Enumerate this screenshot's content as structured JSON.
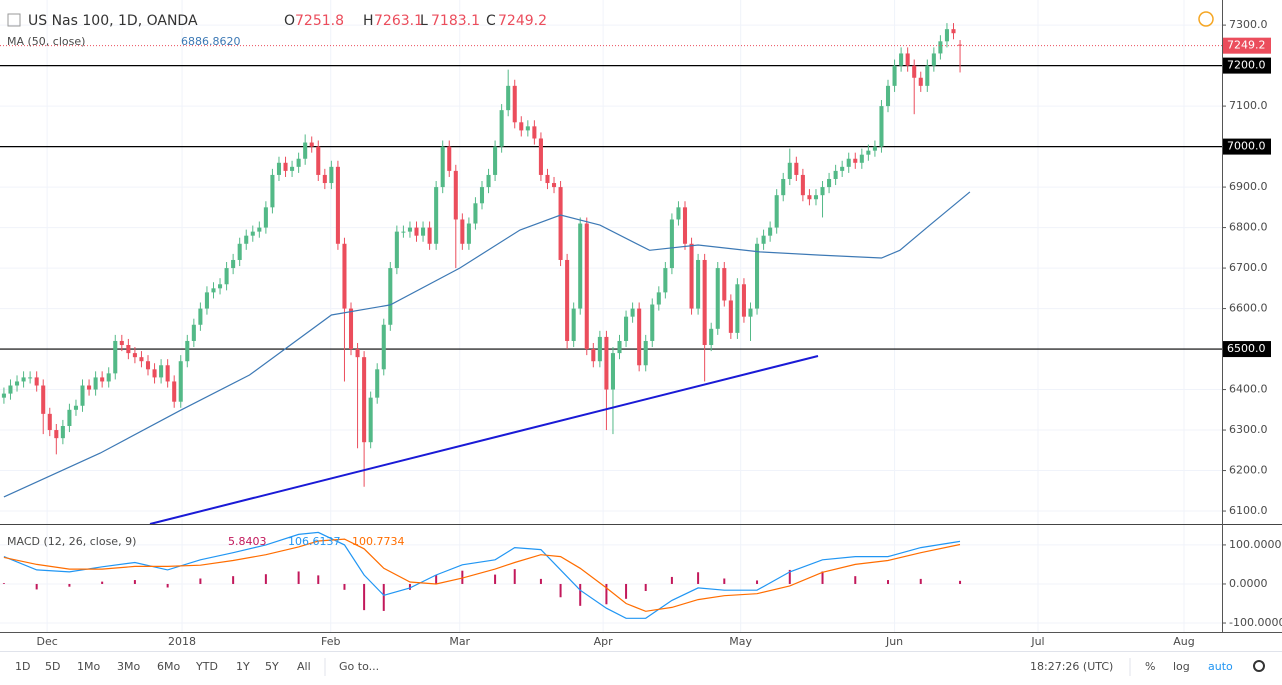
{
  "chart_data": {
    "type": "candlestick",
    "title": "US Nas 100, 1D, OANDA",
    "ohlc_labels": [
      "O",
      "H",
      "L",
      "C"
    ],
    "up_color": "#53b987",
    "down_color": "#eb4d5c",
    "xlim": [
      -0.6,
      186
    ],
    "xticks": [
      {
        "value": 6.6,
        "label": "Dec"
      },
      {
        "value": 27.2,
        "label": "2018"
      },
      {
        "value": 49.9,
        "label": "Feb"
      },
      {
        "value": 69.6,
        "label": "Mar"
      },
      {
        "value": 91.5,
        "label": "Apr"
      },
      {
        "value": 112.5,
        "label": "May"
      },
      {
        "value": 136,
        "label": "Jun"
      },
      {
        "value": 157.9,
        "label": "Jul"
      },
      {
        "value": 180.2,
        "label": "Aug"
      }
    ],
    "ylim": [
      6068,
      7362
    ],
    "yticks": [
      {
        "value": 6100,
        "label": "6100.0"
      },
      {
        "value": 6200,
        "label": "6200.0"
      },
      {
        "value": 6300,
        "label": "6300.0"
      },
      {
        "value": 6400,
        "label": "6400.0"
      },
      {
        "value": 6500,
        "label": "6500.0"
      },
      {
        "value": 6600,
        "label": "6600.0"
      },
      {
        "value": 6700,
        "label": "6700.0"
      },
      {
        "value": 6800,
        "label": "6800.0"
      },
      {
        "value": 6900,
        "label": "6900.0"
      },
      {
        "value": 7000,
        "label": "7000.0"
      },
      {
        "value": 7100,
        "label": "7100.0"
      },
      {
        "value": 7200,
        "label": "7200.0"
      },
      {
        "value": 7300,
        "label": "7300.0"
      }
    ],
    "grid": true,
    "levels": [
      7200,
      7000,
      6500
    ],
    "candles": [
      [
        6380,
        6405,
        6365,
        6390
      ],
      [
        6390,
        6425,
        6375,
        6410
      ],
      [
        6410,
        6435,
        6395,
        6420
      ],
      [
        6420,
        6445,
        6405,
        6430
      ],
      [
        6430,
        6445,
        6415,
        6430
      ],
      [
        6430,
        6445,
        6395,
        6410
      ],
      [
        6410,
        6425,
        6290,
        6340
      ],
      [
        6340,
        6355,
        6285,
        6300
      ],
      [
        6300,
        6315,
        6240,
        6280
      ],
      [
        6280,
        6325,
        6265,
        6310
      ],
      [
        6310,
        6365,
        6295,
        6350
      ],
      [
        6350,
        6375,
        6335,
        6360
      ],
      [
        6360,
        6425,
        6345,
        6410
      ],
      [
        6410,
        6425,
        6385,
        6400
      ],
      [
        6400,
        6445,
        6385,
        6430
      ],
      [
        6430,
        6445,
        6405,
        6420
      ],
      [
        6420,
        6455,
        6405,
        6440
      ],
      [
        6440,
        6535,
        6425,
        6520
      ],
      [
        6520,
        6535,
        6495,
        6510
      ],
      [
        6510,
        6525,
        6475,
        6490
      ],
      [
        6490,
        6505,
        6465,
        6480
      ],
      [
        6480,
        6495,
        6455,
        6470
      ],
      [
        6470,
        6485,
        6435,
        6450
      ],
      [
        6450,
        6465,
        6415,
        6430
      ],
      [
        6430,
        6475,
        6415,
        6460
      ],
      [
        6460,
        6475,
        6405,
        6420
      ],
      [
        6420,
        6435,
        6355,
        6370
      ],
      [
        6370,
        6485,
        6355,
        6470
      ],
      [
        6470,
        6535,
        6455,
        6520
      ],
      [
        6520,
        6575,
        6505,
        6560
      ],
      [
        6560,
        6615,
        6545,
        6600
      ],
      [
        6600,
        6655,
        6585,
        6640
      ],
      [
        6640,
        6665,
        6625,
        6650
      ],
      [
        6650,
        6675,
        6635,
        6660
      ],
      [
        6660,
        6715,
        6645,
        6700
      ],
      [
        6700,
        6735,
        6685,
        6720
      ],
      [
        6720,
        6775,
        6705,
        6760
      ],
      [
        6760,
        6795,
        6745,
        6780
      ],
      [
        6780,
        6805,
        6765,
        6790
      ],
      [
        6790,
        6815,
        6775,
        6800
      ],
      [
        6800,
        6865,
        6785,
        6850
      ],
      [
        6850,
        6945,
        6835,
        6930
      ],
      [
        6930,
        6975,
        6915,
        6960
      ],
      [
        6960,
        6975,
        6925,
        6940
      ],
      [
        6940,
        6965,
        6925,
        6950
      ],
      [
        6950,
        6985,
        6935,
        6970
      ],
      [
        6970,
        7030,
        6955,
        7010
      ],
      [
        7010,
        7025,
        6985,
        7000
      ],
      [
        7000,
        7015,
        6915,
        6930
      ],
      [
        6930,
        6945,
        6895,
        6910
      ],
      [
        6910,
        6965,
        6895,
        6950
      ],
      [
        6950,
        6965,
        6745,
        6760
      ],
      [
        6760,
        6775,
        6420,
        6600
      ],
      [
        6600,
        6615,
        6485,
        6500
      ],
      [
        6500,
        6515,
        6255,
        6480
      ],
      [
        6480,
        6495,
        6160,
        6270
      ],
      [
        6270,
        6395,
        6255,
        6380
      ],
      [
        6380,
        6465,
        6365,
        6450
      ],
      [
        6450,
        6575,
        6435,
        6560
      ],
      [
        6560,
        6715,
        6545,
        6700
      ],
      [
        6700,
        6805,
        6685,
        6790
      ],
      [
        6790,
        6805,
        6775,
        6790
      ],
      [
        6790,
        6815,
        6775,
        6800
      ],
      [
        6800,
        6815,
        6765,
        6780
      ],
      [
        6780,
        6815,
        6765,
        6800
      ],
      [
        6800,
        6815,
        6745,
        6760
      ],
      [
        6760,
        6915,
        6745,
        6900
      ],
      [
        6900,
        7015,
        6885,
        7000
      ],
      [
        7000,
        7015,
        6925,
        6940
      ],
      [
        6940,
        6955,
        6700,
        6820
      ],
      [
        6820,
        6835,
        6745,
        6760
      ],
      [
        6760,
        6825,
        6745,
        6810
      ],
      [
        6810,
        6875,
        6795,
        6860
      ],
      [
        6860,
        6915,
        6845,
        6900
      ],
      [
        6900,
        6945,
        6885,
        6930
      ],
      [
        6930,
        7015,
        6915,
        7000
      ],
      [
        7000,
        7105,
        6985,
        7090
      ],
      [
        7090,
        7190,
        7075,
        7150
      ],
      [
        7150,
        7165,
        7045,
        7060
      ],
      [
        7060,
        7075,
        7025,
        7040
      ],
      [
        7040,
        7065,
        7025,
        7050
      ],
      [
        7050,
        7065,
        7005,
        7020
      ],
      [
        7020,
        7035,
        6915,
        6930
      ],
      [
        6930,
        6945,
        6895,
        6910
      ],
      [
        6910,
        6925,
        6885,
        6900
      ],
      [
        6900,
        6915,
        6705,
        6720
      ],
      [
        6720,
        6735,
        6500,
        6520
      ],
      [
        6520,
        6615,
        6505,
        6600
      ],
      [
        6600,
        6825,
        6585,
        6810
      ],
      [
        6810,
        6825,
        6485,
        6500
      ],
      [
        6500,
        6515,
        6455,
        6470
      ],
      [
        6470,
        6545,
        6455,
        6530
      ],
      [
        6530,
        6545,
        6300,
        6400
      ],
      [
        6400,
        6505,
        6290,
        6490
      ],
      [
        6490,
        6535,
        6475,
        6520
      ],
      [
        6520,
        6595,
        6505,
        6580
      ],
      [
        6580,
        6615,
        6565,
        6600
      ],
      [
        6600,
        6615,
        6445,
        6460
      ],
      [
        6460,
        6535,
        6445,
        6520
      ],
      [
        6520,
        6625,
        6505,
        6610
      ],
      [
        6610,
        6655,
        6595,
        6640
      ],
      [
        6640,
        6715,
        6625,
        6700
      ],
      [
        6700,
        6835,
        6685,
        6820
      ],
      [
        6820,
        6865,
        6805,
        6850
      ],
      [
        6850,
        6865,
        6745,
        6760
      ],
      [
        6760,
        6775,
        6585,
        6600
      ],
      [
        6600,
        6735,
        6585,
        6720
      ],
      [
        6720,
        6735,
        6420,
        6510
      ],
      [
        6510,
        6565,
        6495,
        6550
      ],
      [
        6550,
        6715,
        6535,
        6700
      ],
      [
        6700,
        6715,
        6605,
        6620
      ],
      [
        6620,
        6635,
        6525,
        6540
      ],
      [
        6540,
        6675,
        6525,
        6660
      ],
      [
        6660,
        6675,
        6565,
        6580
      ],
      [
        6580,
        6615,
        6520,
        6600
      ],
      [
        6600,
        6775,
        6585,
        6760
      ],
      [
        6760,
        6795,
        6745,
        6780
      ],
      [
        6780,
        6815,
        6765,
        6800
      ],
      [
        6800,
        6895,
        6785,
        6880
      ],
      [
        6880,
        6935,
        6865,
        6920
      ],
      [
        6920,
        6995,
        6905,
        6960
      ],
      [
        6960,
        6975,
        6915,
        6930
      ],
      [
        6930,
        6945,
        6865,
        6880
      ],
      [
        6880,
        6895,
        6855,
        6870
      ],
      [
        6870,
        6895,
        6855,
        6880
      ],
      [
        6880,
        6915,
        6825,
        6900
      ],
      [
        6900,
        6935,
        6885,
        6920
      ],
      [
        6920,
        6955,
        6905,
        6940
      ],
      [
        6940,
        6965,
        6925,
        6950
      ],
      [
        6950,
        6985,
        6935,
        6970
      ],
      [
        6970,
        6985,
        6945,
        6960
      ],
      [
        6960,
        6995,
        6945,
        6980
      ],
      [
        6980,
        7005,
        6965,
        6990
      ],
      [
        6990,
        7015,
        6975,
        7000
      ],
      [
        7000,
        7115,
        6985,
        7100
      ],
      [
        7100,
        7165,
        7085,
        7150
      ],
      [
        7150,
        7215,
        7135,
        7200
      ],
      [
        7200,
        7245,
        7185,
        7230
      ],
      [
        7230,
        7245,
        7185,
        7200
      ],
      [
        7200,
        7215,
        7080,
        7170
      ],
      [
        7170,
        7185,
        7135,
        7150
      ],
      [
        7150,
        7215,
        7135,
        7200
      ],
      [
        7200,
        7245,
        7185,
        7230
      ],
      [
        7230,
        7275,
        7215,
        7260
      ],
      [
        7260,
        7305,
        7245,
        7290
      ],
      [
        7290,
        7305,
        7265,
        7280
      ],
      [
        7251.8,
        7263.1,
        7183.1,
        7249.2
      ]
    ],
    "ma": {
      "label": "MA (50, close)",
      "value_text": "6886.8620",
      "color": "#3d79b5",
      "x": [
        0,
        14.7,
        27,
        37.5,
        50,
        59,
        69.6,
        78.8,
        85,
        91,
        98.6,
        106,
        115.4,
        124.6,
        134,
        136.8,
        141.4,
        147.5
      ],
      "values": [
        6135,
        6243,
        6349,
        6436,
        6584,
        6609,
        6700,
        6794,
        6831,
        6806,
        6744,
        6757,
        6740,
        6732,
        6725,
        6744,
        6806,
        6888
      ]
    },
    "macd": {
      "label": "MACD (12, 26, close, 9)",
      "hist_text": "5.8403",
      "macd_text": "106.6137",
      "signal_text": "100.7734",
      "macd_color": "#2196f3",
      "signal_color": "#ff6d00",
      "hist_color": "#c2185b",
      "ylim": [
        -123,
        151
      ],
      "yticks": [
        {
          "value": 100,
          "label": "100.0000"
        },
        {
          "value": 0,
          "label": "0.0000"
        },
        {
          "value": -100,
          "label": "-100.0000"
        }
      ],
      "x": [
        0,
        5,
        10,
        15,
        20,
        25,
        30,
        35,
        40,
        45,
        48,
        52,
        55,
        58,
        62,
        66,
        70,
        75,
        78,
        82,
        85,
        88,
        92,
        95,
        98,
        102,
        106,
        110,
        115,
        120,
        125,
        130,
        135,
        140,
        146
      ],
      "macd_line": [
        70,
        36,
        31,
        44,
        55,
        36,
        62,
        80,
        100,
        127,
        132,
        100,
        23,
        -29,
        -10,
        23,
        49,
        62,
        93,
        88,
        36,
        -16,
        -62,
        -88,
        -88,
        -42,
        -10,
        -16,
        -16,
        31,
        62,
        70,
        70,
        93,
        109
      ],
      "signal_line": [
        68,
        50,
        38,
        38,
        45,
        45,
        48,
        60,
        75,
        95,
        110,
        115,
        90,
        40,
        5,
        0,
        15,
        38,
        55,
        75,
        70,
        40,
        -10,
        -50,
        -70,
        -60,
        -40,
        -30,
        -25,
        -5,
        30,
        50,
        60,
        80,
        101
      ],
      "histogram": [
        2,
        -14,
        -7,
        6,
        10,
        -9,
        14,
        20,
        25,
        32,
        22,
        -15,
        -67,
        -69,
        -15,
        23,
        34,
        24,
        38,
        13,
        -34,
        -56,
        -52,
        -38,
        -18,
        18,
        30,
        14,
        9,
        36,
        32,
        20,
        10,
        13,
        8
      ]
    }
  },
  "toolbar": {
    "ranges": [
      "1D",
      "5D",
      "1Mo",
      "3Mo",
      "6Mo",
      "YTD",
      "1Y",
      "5Y",
      "All"
    ],
    "goto": "Go to...",
    "time": "18:27:26 (UTC)",
    "percent": "%",
    "log": "log",
    "auto": "auto"
  }
}
